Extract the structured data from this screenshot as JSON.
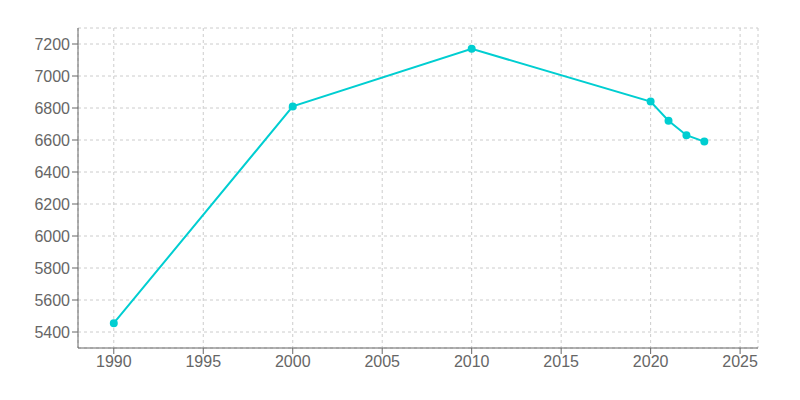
{
  "chart_data": {
    "type": "line",
    "x": [
      1990,
      2000,
      2010,
      2020,
      2021,
      2022,
      2023
    ],
    "values": [
      5455,
      6810,
      7170,
      6840,
      6720,
      6630,
      6590
    ],
    "color": "#00CED1",
    "marker": "circle",
    "xlim": [
      1988,
      2026
    ],
    "xticks": [
      1990,
      1995,
      2000,
      2005,
      2010,
      2015,
      2020,
      2025
    ],
    "ylim": [
      5300,
      7300
    ],
    "yticks": [
      5400,
      5600,
      5800,
      6000,
      6200,
      6400,
      6600,
      6800,
      7000,
      7200
    ],
    "grid": true
  }
}
